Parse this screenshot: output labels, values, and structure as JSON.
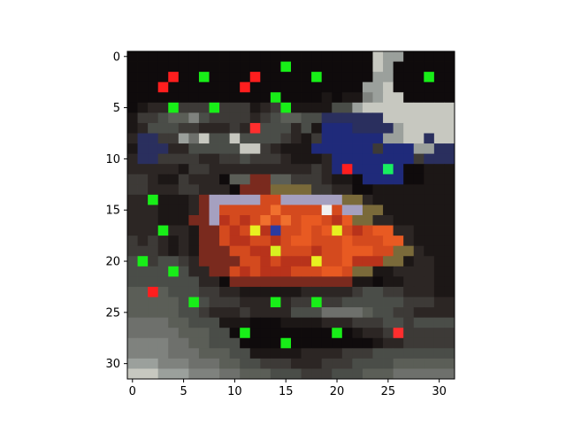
{
  "chart_data": {
    "type": "heatmap",
    "title": "",
    "xlabel": "",
    "ylabel": "",
    "xlim": [
      -0.5,
      31.5
    ],
    "ylim": [
      31.5,
      -0.5
    ],
    "grid": false,
    "x_ticks": [
      0,
      5,
      10,
      15,
      20,
      25,
      30
    ],
    "y_ticks": [
      0,
      5,
      10,
      15,
      20,
      25,
      30
    ],
    "palette": [
      "#0f0b0c",
      "#1c1716",
      "#2c2624",
      "#3d3a37",
      "#4a4d48",
      "#5b5e57",
      "#6e706c",
      "#7f827e",
      "#9ba09c",
      "#c7c8c0",
      "#2a2f5e",
      "#1f2a7a",
      "#2c3aa0",
      "#7a2a1e",
      "#b8331b",
      "#d44a1e",
      "#e85a22",
      "#f0702e",
      "#c41f2c",
      "#d8b4a0",
      "#a08878",
      "#5d4a3a",
      "#7a6a3a",
      "#a5a0c0"
    ],
    "rows": [
      "0000000000000000000000009880000",
      "0000000000000000000000009800000",
      "0000000000000000000000008800000",
      "0000000000000000000000088900000",
      "0000000000000000000101178990000",
      "0122233343331233111144899999999",
      "1334557433332345544aaaaaa999999",
      "1244433222323444241bbbaaaa89999",
      "2aa33869ss9s4443213bbbbbb8899a9",
      "1aaa224ssss9932111bbbbbb3bbb88a",
      "2aa333322rrsr3321112bbbbbbbb3aa",
      "22222133222222222232bbbbbbb0011",
      "3321132220ttddtt3332110bbbb0011",
      "33222332220dddmmmm3322001111111",
      "2221112dnnnnnffnnnnnnmm21111111",
      "2221112dnfffffhffffffnnmm11111",
      "222111ddnefefhfhfggfegmm2211111",
      "2222221ddfefeecffgfgefefgg22111",
      "3232121ddfeeffefggfffgfffgg2111",
      "3332121dddffeeefffeffgggffmm21",
      "4434432ddddffefeeefffgeeemm1221",
      "44444422ddfefeeefffggfmm1122221",
      "4444444220dddddddddddd110112221",
      "5555444332211111122222344332221",
      "5555544433322222333334444443332",
      "555554432223222244466665443322",
      "66665544411100011112223334434",
      "66666555440000000000001223333",
      "777766554440000000000000122333",
      "77776665554411111222233344444",
      "888777666554433322233344445555",
      "999888777665554443334445556666"
    ],
    "highlighted_pixels": [
      {
        "x": 15,
        "y": 1,
        "color": "#18ee18"
      },
      {
        "x": 4,
        "y": 2,
        "color": "#ff1e1e"
      },
      {
        "x": 7,
        "y": 2,
        "color": "#18ee18"
      },
      {
        "x": 12,
        "y": 2,
        "color": "#ff1e1e"
      },
      {
        "x": 18,
        "y": 2,
        "color": "#18ee18"
      },
      {
        "x": 29,
        "y": 2,
        "color": "#18ee18"
      },
      {
        "x": 3,
        "y": 3,
        "color": "#ff1e1e"
      },
      {
        "x": 11,
        "y": 3,
        "color": "#ff1e1e"
      },
      {
        "x": 14,
        "y": 4,
        "color": "#18ee18"
      },
      {
        "x": 4,
        "y": 5,
        "color": "#18ee18"
      },
      {
        "x": 8,
        "y": 5,
        "color": "#18ee18"
      },
      {
        "x": 15,
        "y": 5,
        "color": "#18ee18"
      },
      {
        "x": 12,
        "y": 7,
        "color": "#ff2e2e"
      },
      {
        "x": 21,
        "y": 11,
        "color": "#ff1e1e"
      },
      {
        "x": 25,
        "y": 11,
        "color": "#18ee60"
      },
      {
        "x": 2,
        "y": 14,
        "color": "#18ee18"
      },
      {
        "x": 19,
        "y": 15,
        "color": "#f0f0f0"
      },
      {
        "x": 12,
        "y": 17,
        "color": "#e8f020"
      },
      {
        "x": 20,
        "y": 17,
        "color": "#e8f020"
      },
      {
        "x": 3,
        "y": 17,
        "color": "#18ee18"
      },
      {
        "x": 14,
        "y": 19,
        "color": "#d8f020"
      },
      {
        "x": 1,
        "y": 20,
        "color": "#18ee18"
      },
      {
        "x": 18,
        "y": 20,
        "color": "#e8f020"
      },
      {
        "x": 4,
        "y": 21,
        "color": "#18ee18"
      },
      {
        "x": 2,
        "y": 23,
        "color": "#ff1e1e"
      },
      {
        "x": 6,
        "y": 24,
        "color": "#18ee18"
      },
      {
        "x": 14,
        "y": 24,
        "color": "#18ee18"
      },
      {
        "x": 18,
        "y": 24,
        "color": "#18ee18"
      },
      {
        "x": 11,
        "y": 27,
        "color": "#18ee18"
      },
      {
        "x": 20,
        "y": 27,
        "color": "#18ee18"
      },
      {
        "x": 26,
        "y": 27,
        "color": "#ff2e2e"
      },
      {
        "x": 15,
        "y": 28,
        "color": "#18ee18"
      }
    ]
  }
}
